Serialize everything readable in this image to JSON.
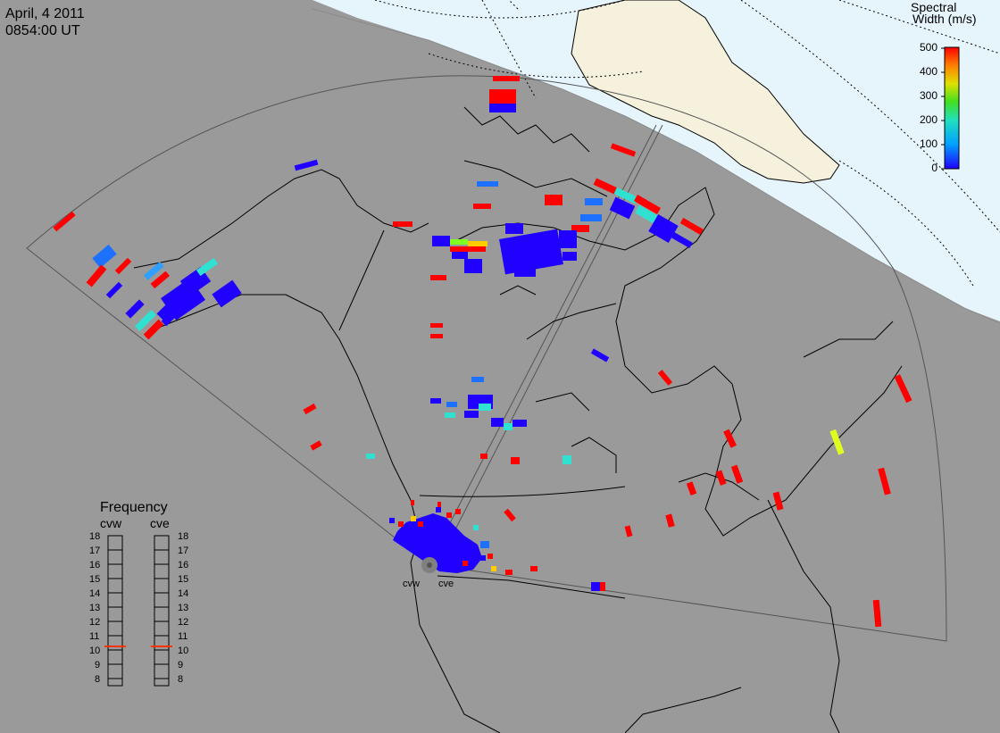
{
  "header": {
    "date": "April, 4 2011",
    "time": "0854:00 UT"
  },
  "colorbar": {
    "title_line1": "Spectral",
    "title_line2": "Width (m/s)",
    "ticks": [
      "500",
      "400",
      "300",
      "200",
      "100",
      "0"
    ],
    "range": [
      0,
      500
    ]
  },
  "frequency_panel": {
    "title": "Frequency",
    "radars": [
      "cvw",
      "cve"
    ],
    "ticks": [
      "18",
      "17",
      "16",
      "15",
      "14",
      "13",
      "12",
      "11",
      "10",
      "9",
      "8"
    ],
    "marker_color": "#ff3300"
  },
  "radar_labels": {
    "west": "cvw",
    "east": "cve"
  },
  "colors": {
    "background": "#9a9a9a",
    "night_side": "#9a9a9a",
    "ocean_day": "#e6f4fb",
    "land_day": "#f6f1dc",
    "coast": "#000000",
    "fov_border": "#555555",
    "gate_blue": "#2000ff",
    "gate_red": "#ff0000"
  }
}
